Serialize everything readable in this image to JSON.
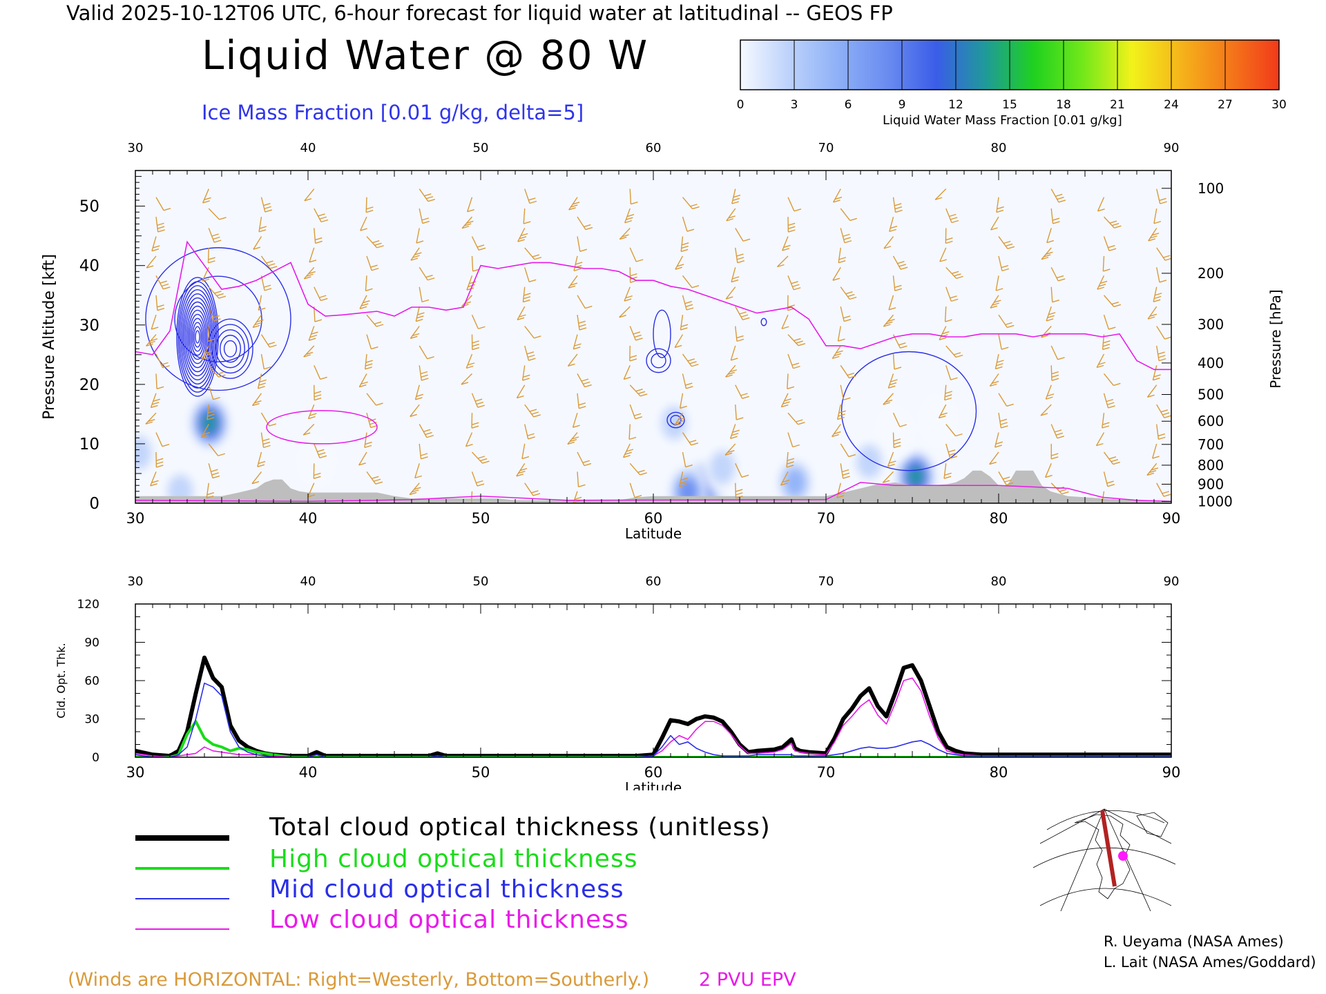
{
  "header": {
    "valid_line": "Valid 2025-10-12T06 UTC, 6-hour forecast for liquid water at latitudinal -- GEOS FP",
    "title": "Liquid Water @ 80 W",
    "ice_label": "Ice Mass Fraction [0.01 g/kg, delta=5]"
  },
  "colorbar": {
    "title": "Liquid Water Mass Fraction [0.01 g/kg]",
    "ticks": [
      "0",
      "3",
      "6",
      "9",
      "12",
      "15",
      "18",
      "21",
      "24",
      "27",
      "30"
    ],
    "colors": [
      "#f6f9ff",
      "#bcd2fb",
      "#8eb0f7",
      "#6a8cf0",
      "#3a5de8",
      "#1f9a9a",
      "#1fd11f",
      "#72e81a",
      "#f2f21a",
      "#f5b41a",
      "#f4781a",
      "#f23a1a"
    ]
  },
  "colors": {
    "wind": "#d99a3a",
    "epv": "#e81ae8",
    "ice": "#2a2fe6",
    "terrain": "#bebebe",
    "total": "#000000",
    "high": "#1adc1a",
    "mid": "#2a2fe6",
    "low": "#e81ae8"
  },
  "chart_data": [
    {
      "type": "heatmap",
      "title": "Liquid Water @ 80 W",
      "xlabel": "Latitude",
      "ylabel": "Pressure Altitude [kft]",
      "y2label": "Pressure [hPa]",
      "xlim": [
        30,
        90
      ],
      "ylim": [
        0,
        56
      ],
      "x_ticks": [
        "30",
        "40",
        "50",
        "60",
        "70",
        "80",
        "90"
      ],
      "y_ticks": [
        "0",
        "10",
        "20",
        "30",
        "40",
        "50"
      ],
      "pressure_ticks": [
        {
          "label": "100",
          "kft": 53.0
        },
        {
          "label": "200",
          "kft": 38.7
        },
        {
          "label": "300",
          "kft": 30.1
        },
        {
          "label": "400",
          "kft": 23.6
        },
        {
          "label": "500",
          "kft": 18.3
        },
        {
          "label": "600",
          "kft": 13.8
        },
        {
          "label": "700",
          "kft": 9.9
        },
        {
          "label": "800",
          "kft": 6.4
        },
        {
          "label": "900",
          "kft": 3.2
        },
        {
          "label": "1000",
          "kft": 0.3
        }
      ],
      "liquid_water_blobs": [
        {
          "lat": 34.3,
          "alt": 13.5,
          "peak": 17
        },
        {
          "lat": 63.0,
          "alt": 3.0,
          "peak": 15
        },
        {
          "lat": 62.0,
          "alt": 2.0,
          "peak": 10
        },
        {
          "lat": 61.2,
          "alt": 13.5,
          "peak": 6
        },
        {
          "lat": 68.2,
          "alt": 3.5,
          "peak": 9
        },
        {
          "lat": 75.2,
          "alt": 4.5,
          "peak": 17
        },
        {
          "lat": 74.0,
          "alt": 12.0,
          "peak": 3
        },
        {
          "lat": 76.5,
          "alt": 14.0,
          "peak": 3
        },
        {
          "lat": 72.5,
          "alt": 7.0,
          "peak": 4
        },
        {
          "lat": 30.2,
          "alt": 8.5,
          "peak": 5
        },
        {
          "lat": 32.6,
          "alt": 2.0,
          "peak": 4
        },
        {
          "lat": 40.5,
          "alt": 7.0,
          "peak": 3
        },
        {
          "lat": 64.0,
          "alt": 6.0,
          "peak": 4
        }
      ],
      "epv_2pvu": {
        "lat": [
          30,
          31,
          32,
          33,
          34,
          35,
          36,
          37,
          38,
          39,
          40,
          41,
          42,
          43,
          44,
          45,
          46,
          47,
          48,
          49,
          50,
          51,
          52,
          53,
          54,
          55,
          56,
          57,
          58,
          59,
          60,
          61,
          62,
          63,
          64,
          65,
          66,
          67,
          68,
          69,
          70,
          71,
          72,
          73,
          74,
          75,
          76,
          77,
          78,
          79,
          80,
          81,
          82,
          83,
          84,
          85,
          86,
          87,
          88,
          89,
          90
        ],
        "alt": [
          25.5,
          25,
          29,
          44,
          40,
          36,
          36.5,
          37.5,
          39,
          40.5,
          33.5,
          31.5,
          31.7,
          32,
          32.3,
          31.5,
          33,
          33,
          32.5,
          33,
          40,
          39.5,
          40,
          40.5,
          40.5,
          40,
          39.5,
          39.5,
          39,
          37.5,
          37.5,
          36.5,
          36,
          35,
          34,
          33,
          32,
          32.5,
          33,
          31,
          26.5,
          26.5,
          26,
          27,
          28,
          28.5,
          28.5,
          28,
          28,
          28.5,
          28.5,
          28.5,
          28,
          28.5,
          28.5,
          28.5,
          28,
          28.5,
          24,
          22.5,
          22.5
        ]
      },
      "terrain": {
        "lat": [
          30,
          32,
          33,
          34,
          35,
          35.5,
          36,
          37,
          37.5,
          38,
          38.5,
          39,
          39.5,
          40,
          41,
          42,
          43,
          44,
          45,
          46,
          47,
          48,
          49,
          50,
          51,
          52,
          53,
          54,
          55,
          56,
          57,
          58,
          59,
          60,
          61,
          62,
          63,
          64,
          65,
          66,
          67,
          68,
          69,
          70,
          71,
          72,
          73,
          74,
          75,
          76,
          77,
          77.5,
          78,
          78.5,
          79,
          79.5,
          80,
          80.5,
          81,
          81.5,
          82,
          82.5,
          83,
          84,
          85,
          86,
          87,
          88,
          89,
          90
        ],
        "alt": [
          1.2,
          1.2,
          1.2,
          1.2,
          1.2,
          1.5,
          1.8,
          2.5,
          3.5,
          4.0,
          4.0,
          2.5,
          2.0,
          1.8,
          1.8,
          1.8,
          1.8,
          1.8,
          1.2,
          0.8,
          0.8,
          0.8,
          0.8,
          0.8,
          0.8,
          0.5,
          0.5,
          0.5,
          0.5,
          0.5,
          0.5,
          0.5,
          1.0,
          1.2,
          1.2,
          1.2,
          1.2,
          1.2,
          1.2,
          1.2,
          1.2,
          1.2,
          1.2,
          1.2,
          1.8,
          2.5,
          3.2,
          3.5,
          3.0,
          3.0,
          3.2,
          3.5,
          4.2,
          5.5,
          5.5,
          4.5,
          3.0,
          3.0,
          5.5,
          5.5,
          5.5,
          3.0,
          2.0,
          1.2,
          1.0,
          0.8,
          0.6,
          0.5,
          0.3,
          0.2
        ]
      },
      "ice_contours": [
        {
          "lat": 33.6,
          "alt": 28.0,
          "rlat": 1.2,
          "ralt": 10.0,
          "levels": 14
        },
        {
          "lat": 35.5,
          "alt": 26.0,
          "rlat": 1.3,
          "ralt": 5.0,
          "levels": 5
        },
        {
          "lat": 34.8,
          "alt": 31.0,
          "rlat": 4.2,
          "ralt": 12.0,
          "levels": 2
        },
        {
          "lat": 60.3,
          "alt": 24.0,
          "rlat": 0.7,
          "ralt": 2.0,
          "levels": 2
        },
        {
          "lat": 60.5,
          "alt": 28.5,
          "rlat": 0.5,
          "ralt": 4.0,
          "levels": 1
        },
        {
          "lat": 61.3,
          "alt": 14.0,
          "rlat": 0.5,
          "ralt": 1.3,
          "levels": 2
        },
        {
          "lat": 66.4,
          "alt": 30.5,
          "rlat": 0.15,
          "ralt": 0.6,
          "levels": 1
        },
        {
          "lat": 74.8,
          "alt": 15.5,
          "rlat": 3.9,
          "ralt": 10.0,
          "levels": 1
        }
      ]
    },
    {
      "type": "line",
      "xlabel": "Latitude",
      "ylabel": "Cld. Opt. Thk.",
      "xlim": [
        30,
        90
      ],
      "ylim": [
        0,
        120
      ],
      "x_ticks": [
        "30",
        "40",
        "50",
        "60",
        "70",
        "80",
        "90"
      ],
      "y_ticks": [
        "0",
        "30",
        "60",
        "90",
        "120"
      ],
      "x": [
        30,
        31,
        32,
        32.5,
        33,
        33.5,
        34,
        34.5,
        35,
        35.5,
        36,
        36.5,
        37,
        37.5,
        38,
        39,
        40,
        40.5,
        41,
        42,
        45,
        47,
        47.5,
        48,
        50,
        55,
        59,
        60,
        60.5,
        61,
        61.5,
        62,
        62.5,
        63,
        63.5,
        64,
        64.5,
        65,
        65.5,
        66,
        67,
        67.5,
        68,
        68.2,
        68.5,
        69,
        70,
        70.5,
        71,
        71.5,
        72,
        72.5,
        73,
        73.5,
        74,
        74.5,
        75,
        75.5,
        76,
        76.5,
        77,
        77.5,
        78,
        79,
        80,
        85,
        90
      ],
      "series": [
        {
          "name": "Total cloud optical thickness (unitless)",
          "values": [
            5,
            2,
            1,
            5,
            20,
            50,
            78,
            62,
            55,
            25,
            13,
            8,
            5,
            3,
            2,
            1,
            1,
            4,
            1,
            1,
            1,
            1,
            3,
            1,
            1,
            1,
            1,
            2,
            15,
            29,
            28,
            26,
            30,
            32,
            31,
            28,
            20,
            10,
            4,
            5,
            6,
            8,
            14,
            7,
            5,
            4,
            3,
            15,
            30,
            38,
            48,
            54,
            40,
            32,
            50,
            70,
            72,
            60,
            40,
            20,
            8,
            5,
            3,
            2,
            2,
            2,
            2
          ]
        },
        {
          "name": "High cloud optical thickness",
          "values": [
            0,
            0,
            0,
            2,
            18,
            28,
            15,
            10,
            8,
            5,
            7,
            6,
            4,
            3,
            2,
            0,
            0,
            0,
            0,
            0,
            0,
            0,
            0,
            0,
            0,
            0,
            0,
            0,
            0,
            0,
            0,
            0,
            0,
            0,
            0,
            0,
            0,
            0,
            0,
            0,
            0,
            0,
            0,
            0,
            0,
            0,
            0,
            0,
            0,
            0,
            0,
            0,
            0,
            0,
            0,
            0,
            0,
            0,
            0,
            0,
            0,
            0,
            0,
            0,
            0,
            0,
            0
          ]
        },
        {
          "name": "Mid cloud optical thickness",
          "values": [
            2,
            0,
            0,
            2,
            8,
            30,
            58,
            55,
            48,
            20,
            8,
            4,
            2,
            1,
            0,
            0,
            0,
            2,
            0,
            0,
            0,
            0,
            1,
            0,
            0,
            0,
            0,
            1,
            8,
            17,
            10,
            12,
            7,
            4,
            2,
            1,
            1,
            1,
            1,
            2,
            2,
            2,
            2,
            1,
            1,
            1,
            1,
            2,
            3,
            5,
            7,
            8,
            7,
            7,
            8,
            10,
            12,
            13,
            10,
            6,
            3,
            2,
            1,
            1,
            1,
            1,
            1
          ]
        },
        {
          "name": "Low cloud optical thickness",
          "values": [
            3,
            1,
            0,
            1,
            2,
            3,
            8,
            5,
            4,
            3,
            2,
            2,
            2,
            1,
            1,
            0,
            0,
            2,
            0,
            0,
            0,
            0,
            1,
            0,
            0,
            0,
            0,
            1,
            5,
            12,
            17,
            14,
            22,
            28,
            28,
            25,
            18,
            9,
            3,
            3,
            4,
            6,
            11,
            5,
            4,
            3,
            2,
            12,
            25,
            32,
            40,
            45,
            33,
            26,
            42,
            60,
            62,
            52,
            32,
            15,
            5,
            3,
            2,
            1,
            1,
            1,
            1
          ]
        }
      ]
    }
  ],
  "legend": {
    "total": "Total cloud optical thickness (unitless)",
    "high": "High cloud optical thickness",
    "mid": "Mid cloud optical thickness",
    "low": "Low cloud optical thickness"
  },
  "notes": {
    "winds": "(Winds are HORIZONTAL: Right=Westerly, Bottom=Southerly.)",
    "epv": "2 PVU EPV"
  },
  "credits": {
    "line1": "R. Ueyama (NASA Ames)",
    "line2": "L. Lait (NASA Ames/Goddard)"
  }
}
